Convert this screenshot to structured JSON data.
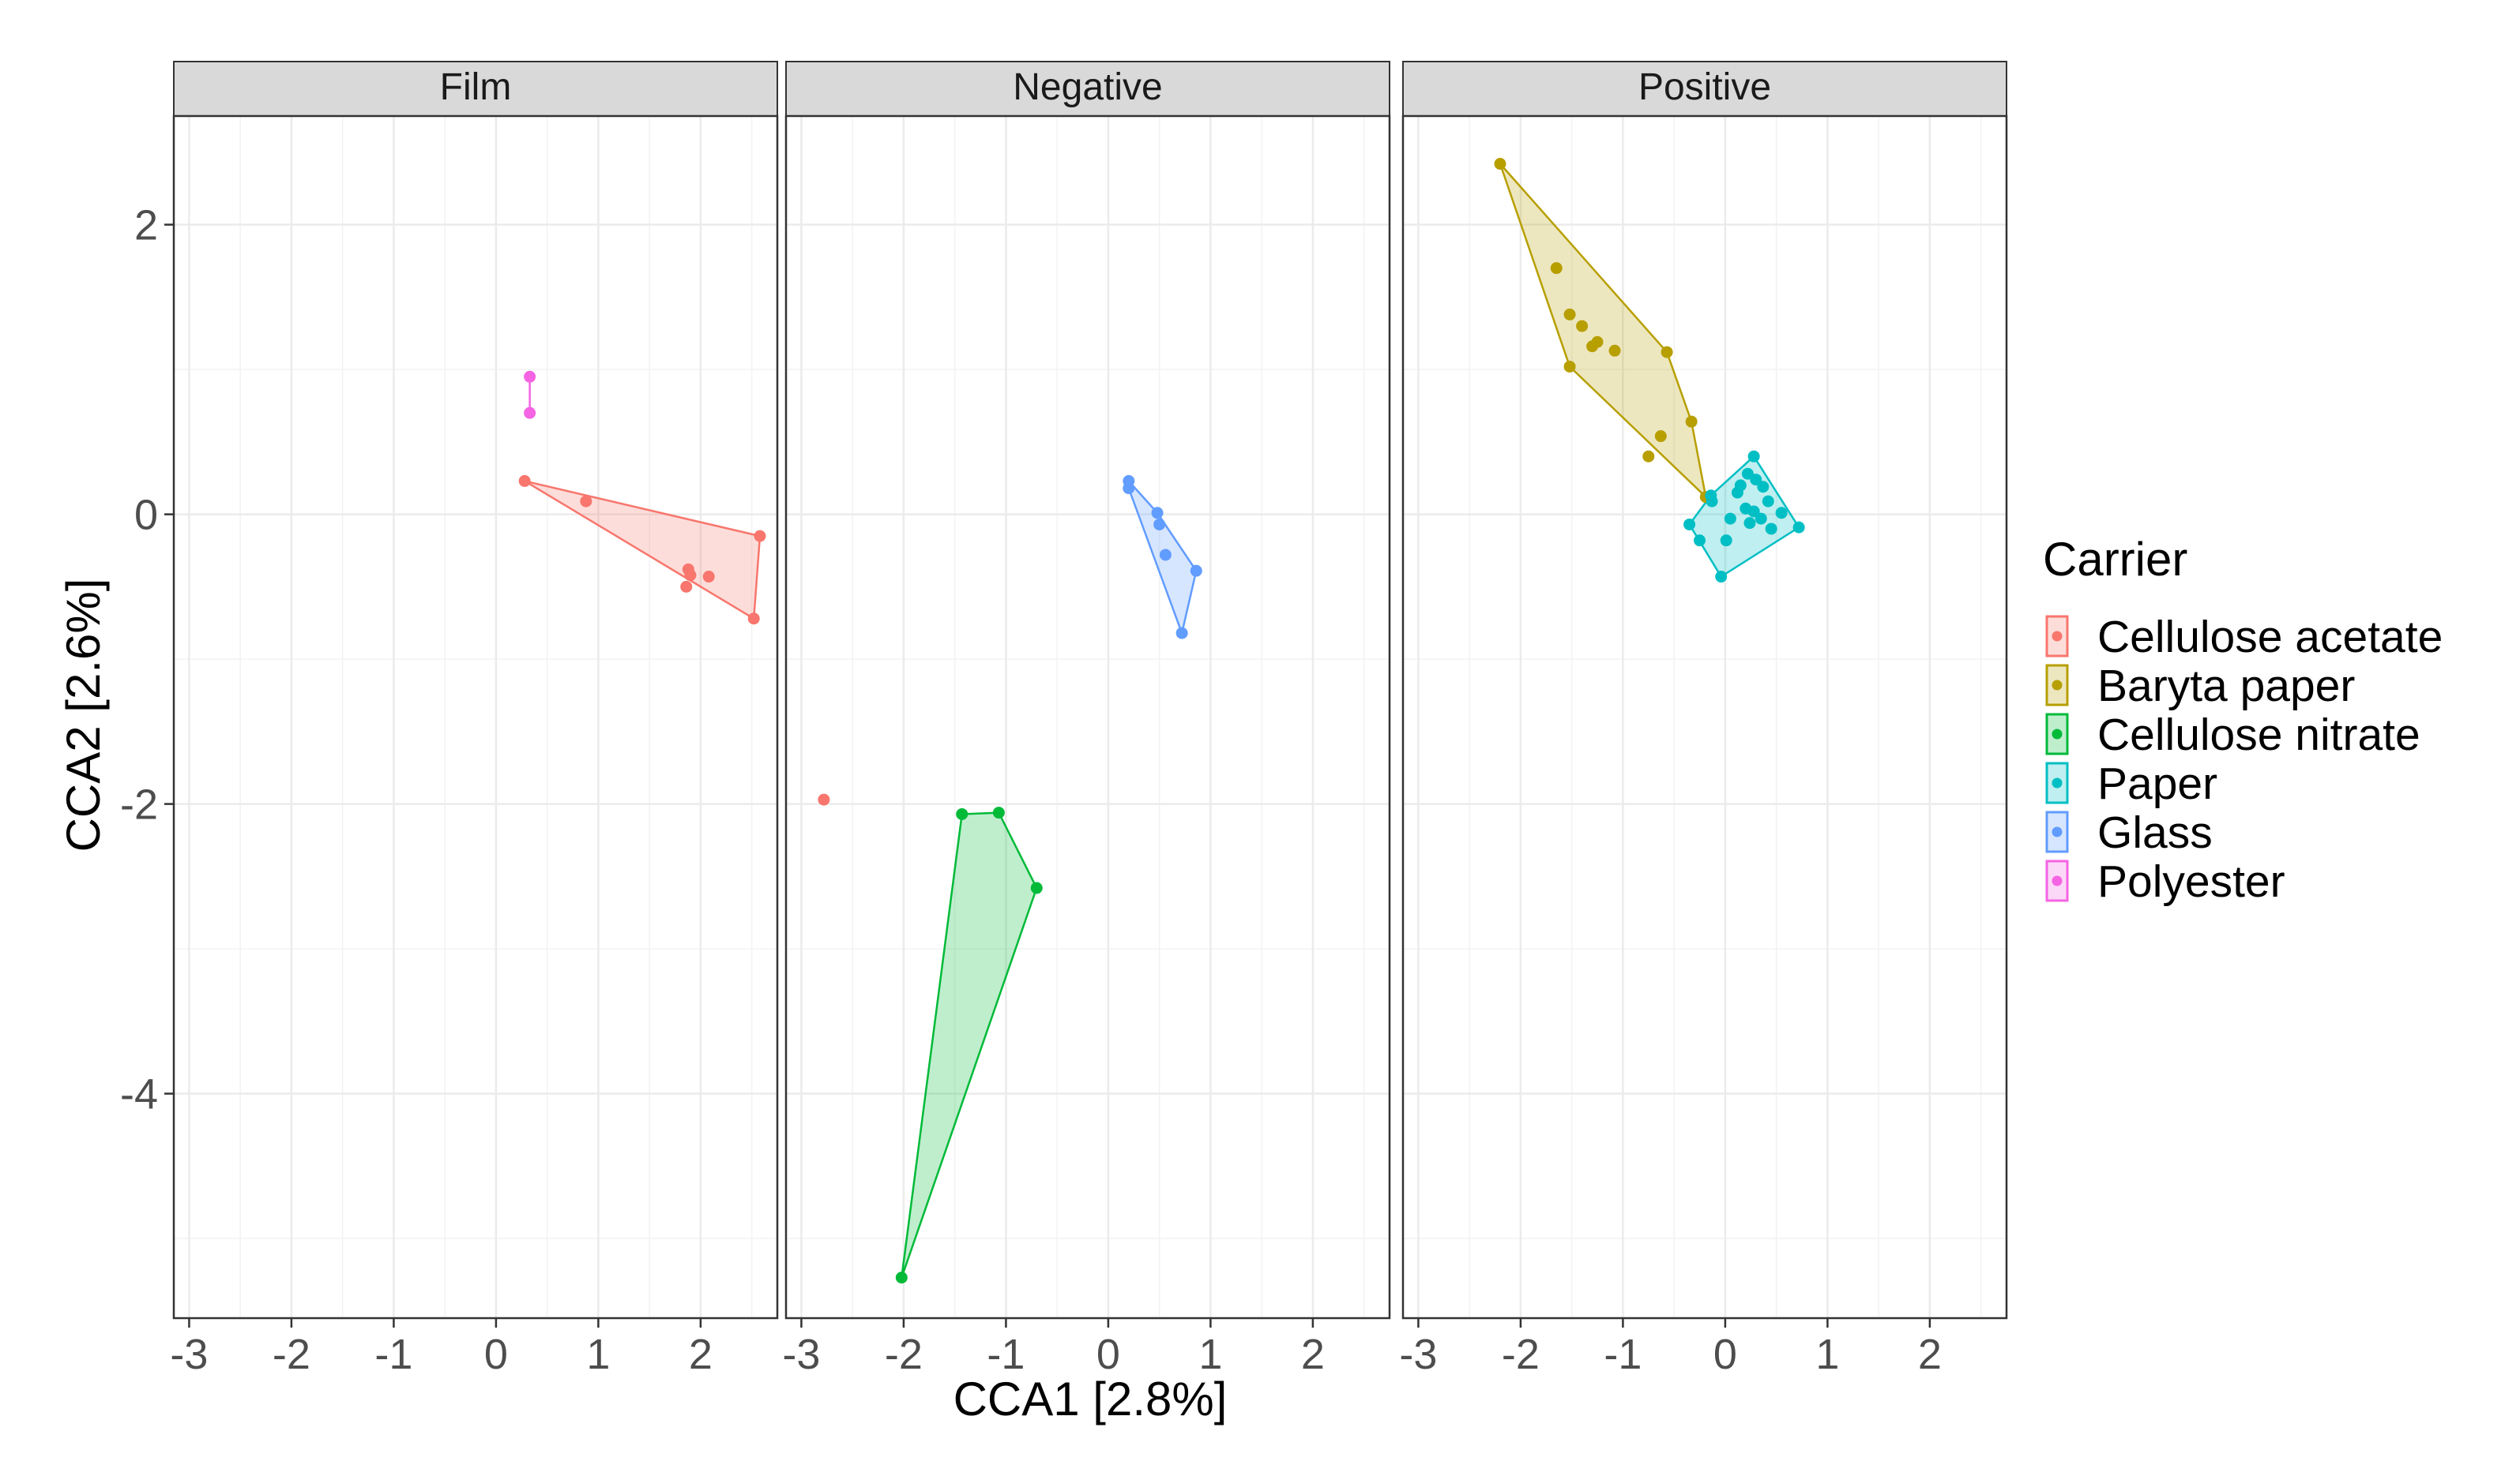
{
  "chart_data": {
    "type": "scatter",
    "subtype": "faceted scatter with convex hulls",
    "xlabel": "CCA1   [2.8%]",
    "ylabel": "CCA2   [2.6%]",
    "xlim": [
      -3.15,
      2.75
    ],
    "ylim": [
      -5.55,
      2.75
    ],
    "x_ticks": [
      -3,
      -2,
      -1,
      0,
      1,
      2
    ],
    "y_ticks": [
      2,
      0,
      -2,
      -4
    ],
    "grid": true,
    "legend": {
      "title": "Carrier",
      "position": "right",
      "entries": [
        {
          "label": "Cellulose acetate",
          "color": "#F8766D"
        },
        {
          "label": "Baryta paper",
          "color": "#B79F00"
        },
        {
          "label": "Cellulose nitrate",
          "color": "#00BA38"
        },
        {
          "label": "Paper",
          "color": "#00BFC4"
        },
        {
          "label": "Glass",
          "color": "#619CFF"
        },
        {
          "label": "Polyester",
          "color": "#F564E3"
        }
      ]
    },
    "panels": [
      {
        "title": "Film",
        "groups": [
          {
            "carrier": "Cellulose acetate",
            "color": "#F8766D",
            "points": [
              [
                0.28,
                0.23
              ],
              [
                0.88,
                0.09
              ],
              [
                1.88,
                -0.38
              ],
              [
                1.9,
                -0.42
              ],
              [
                2.08,
                -0.43
              ],
              [
                1.86,
                -0.5
              ],
              [
                2.52,
                -0.72
              ],
              [
                2.58,
                -0.15
              ]
            ],
            "hull": [
              [
                0.28,
                0.23
              ],
              [
                2.58,
                -0.15
              ],
              [
                2.52,
                -0.72
              ]
            ]
          },
          {
            "carrier": "Polyester",
            "color": "#F564E3",
            "points": [
              [
                0.33,
                0.95
              ],
              [
                0.33,
                0.7
              ]
            ],
            "hull": [
              [
                0.33,
                0.95
              ],
              [
                0.33,
                0.7
              ]
            ]
          }
        ]
      },
      {
        "title": "Negative",
        "groups": [
          {
            "carrier": "Cellulose acetate",
            "color": "#F8766D",
            "points": [
              [
                -2.78,
                -1.97
              ]
            ],
            "hull": []
          },
          {
            "carrier": "Cellulose nitrate",
            "color": "#00BA38",
            "points": [
              [
                -1.43,
                -2.07
              ],
              [
                -1.07,
                -2.06
              ],
              [
                -0.7,
                -2.58
              ],
              [
                -2.02,
                -5.27
              ]
            ],
            "hull": [
              [
                -1.43,
                -2.07
              ],
              [
                -1.07,
                -2.06
              ],
              [
                -0.7,
                -2.58
              ],
              [
                -2.02,
                -5.27
              ]
            ]
          },
          {
            "carrier": "Glass",
            "color": "#619CFF",
            "points": [
              [
                0.2,
                0.23
              ],
              [
                0.2,
                0.18
              ],
              [
                0.48,
                0.01
              ],
              [
                0.5,
                -0.07
              ],
              [
                0.56,
                -0.28
              ],
              [
                0.86,
                -0.39
              ],
              [
                0.72,
                -0.82
              ]
            ],
            "hull": [
              [
                0.2,
                0.23
              ],
              [
                0.48,
                0.01
              ],
              [
                0.86,
                -0.39
              ],
              [
                0.72,
                -0.82
              ],
              [
                0.2,
                0.18
              ]
            ]
          }
        ]
      },
      {
        "title": "Positive",
        "groups": [
          {
            "carrier": "Baryta paper",
            "color": "#B79F00",
            "points": [
              [
                -2.2,
                2.42
              ],
              [
                -1.65,
                1.7
              ],
              [
                -1.52,
                1.38
              ],
              [
                -1.4,
                1.3
              ],
              [
                -1.3,
                1.16
              ],
              [
                -1.25,
                1.19
              ],
              [
                -1.08,
                1.13
              ],
              [
                -0.57,
                1.12
              ],
              [
                -1.52,
                1.02
              ],
              [
                -0.33,
                0.64
              ],
              [
                -0.63,
                0.54
              ],
              [
                -0.75,
                0.4
              ],
              [
                -0.19,
                0.12
              ]
            ],
            "hull": [
              [
                -2.2,
                2.42
              ],
              [
                -0.57,
                1.12
              ],
              [
                -0.33,
                0.64
              ],
              [
                -0.19,
                0.12
              ],
              [
                -1.52,
                1.02
              ]
            ]
          },
          {
            "carrier": "Paper",
            "color": "#00BFC4",
            "points": [
              [
                0.28,
                0.4
              ],
              [
                0.22,
                0.28
              ],
              [
                0.3,
                0.24
              ],
              [
                0.15,
                0.2
              ],
              [
                0.37,
                0.19
              ],
              [
                0.12,
                0.15
              ],
              [
                -0.14,
                0.13
              ],
              [
                -0.13,
                0.09
              ],
              [
                0.42,
                0.09
              ],
              [
                0.2,
                0.04
              ],
              [
                0.28,
                0.02
              ],
              [
                0.55,
                0.01
              ],
              [
                0.05,
                -0.03
              ],
              [
                0.35,
                -0.03
              ],
              [
                0.24,
                -0.06
              ],
              [
                0.45,
                -0.1
              ],
              [
                0.72,
                -0.09
              ],
              [
                -0.35,
                -0.07
              ],
              [
                -0.25,
                -0.18
              ],
              [
                0.01,
                -0.18
              ],
              [
                -0.04,
                -0.43
              ]
            ],
            "hull": [
              [
                0.28,
                0.4
              ],
              [
                0.72,
                -0.09
              ],
              [
                -0.04,
                -0.43
              ],
              [
                -0.35,
                -0.07
              ],
              [
                -0.14,
                0.13
              ]
            ]
          }
        ]
      }
    ]
  }
}
